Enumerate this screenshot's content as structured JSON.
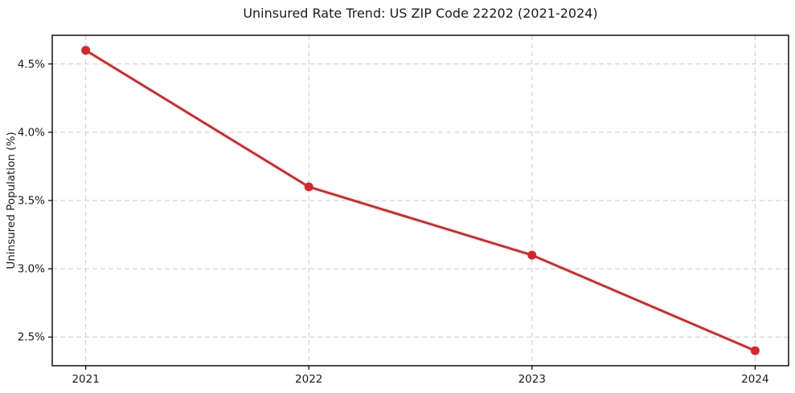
{
  "chart_data": {
    "type": "line",
    "title": "Uninsured Rate Trend: US ZIP Code 22202 (2021-2024)",
    "xlabel": "",
    "ylabel": "Uninsured Population (%)",
    "x": [
      2021,
      2022,
      2023,
      2024
    ],
    "values": [
      4.6,
      3.6,
      3.1,
      2.4
    ],
    "xticks": {
      "values": [
        2021,
        2022,
        2023,
        2024
      ],
      "labels": [
        "2021",
        "2022",
        "2023",
        "2024"
      ]
    },
    "yticks": {
      "values": [
        2.5,
        3.0,
        3.5,
        4.0,
        4.5
      ],
      "labels": [
        "2.5%",
        "3.0%",
        "3.5%",
        "4.0%",
        "4.5%"
      ]
    },
    "xlim": [
      2020.85,
      2024.15
    ],
    "ylim": [
      2.29,
      4.71
    ],
    "grid": true,
    "grid_style": "dashed",
    "legend_position": "none",
    "line_color": "#d62728",
    "marker": "circle",
    "grid_color": "#cccccc",
    "spine_color": "#000000",
    "text_color": "#1a1a1a",
    "background_color": "#ffffff"
  }
}
